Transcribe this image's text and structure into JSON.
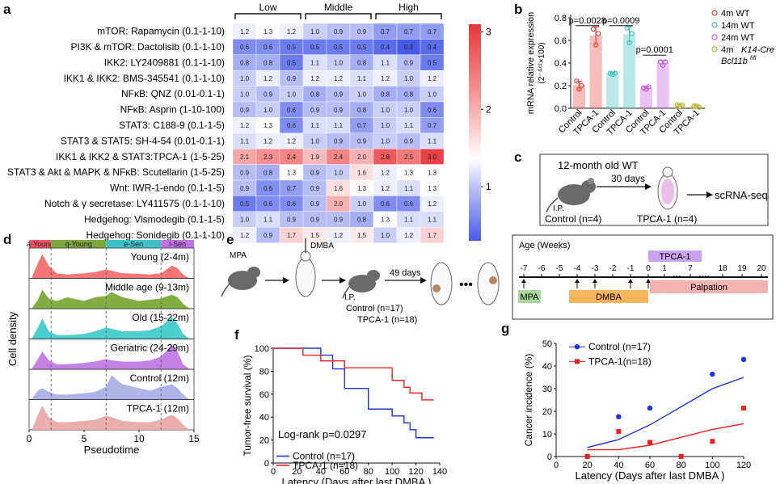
{
  "panels": {
    "a": {
      "label": "a",
      "groups": [
        "Low",
        "Middle",
        "High"
      ],
      "rows": [
        {
          "name": "mTOR: Rapamycin (0.1-1-10)",
          "values": [
            1.2,
            1.3,
            1.2,
            1.0,
            0.9,
            0.9,
            0.7,
            0.7,
            0.7
          ]
        },
        {
          "name": "PI3K & mTOR: Dactolisib (0.1-1-10)",
          "values": [
            0.6,
            0.6,
            0.5,
            0.5,
            0.5,
            0.5,
            0.4,
            0.3,
            0.4
          ]
        },
        {
          "name": "IKK2: LY2409881 (0.1-1-10)",
          "values": [
            0.8,
            0.8,
            0.5,
            1.1,
            1.0,
            0.8,
            1.1,
            0.9,
            0.5
          ]
        },
        {
          "name": "IKK1 & IKK2: BMS-345541 (0.1-1-10)",
          "values": [
            1.0,
            1.2,
            0.9,
            1.2,
            1.2,
            1.1,
            1.2,
            1.0,
            1.2
          ]
        },
        {
          "name": "NFκB: QNZ (0.01-0.1-1)",
          "values": [
            1.0,
            0.9,
            1.0,
            0.8,
            0.9,
            1.0,
            0.8,
            0.8,
            1.0
          ]
        },
        {
          "name": "NFκB: Asprin (1-10-100)",
          "values": [
            0.9,
            1.0,
            0.6,
            0.9,
            0.9,
            0.8,
            1.0,
            1.0,
            0.6
          ]
        },
        {
          "name": "STAT3: C188-9 (0.1-1-5)",
          "values": [
            1.2,
            1.3,
            0.6,
            1.1,
            1.1,
            0.7,
            1.0,
            1.1,
            0.7
          ]
        },
        {
          "name": "STAT3 & STAT5: SH-4-54 (0.01-0.1-1)",
          "values": [
            1.1,
            1.2,
            1.2,
            1.0,
            0.9,
            0.9,
            1.0,
            0.9,
            1.1
          ]
        },
        {
          "name": "IKK1 & IKK2 & STAT3:TPCA-1 (1-5-25)",
          "values": [
            2.1,
            2.3,
            2.4,
            1.9,
            2.4,
            2.0,
            2.8,
            2.5,
            3.0
          ]
        },
        {
          "name": "STAT3 & Akt & MAPK & NFκB: Scutellarin (1-5-25)",
          "values": [
            0.9,
            0.8,
            1.3,
            0.9,
            1.0,
            1.6,
            1.2,
            1.3,
            1.3
          ]
        },
        {
          "name": "Wnt: IWR-1-endo (0.1-1-5)",
          "values": [
            0.9,
            0.6,
            0.7,
            0.9,
            1.6,
            1.3,
            1.2,
            1.1,
            1.3
          ]
        },
        {
          "name": "Notch & γ secretase: LY411575 (0.1-1-10)",
          "values": [
            0.5,
            0.6,
            0.6,
            0.9,
            2.0,
            1.0,
            0.6,
            0.6,
            1.2
          ]
        },
        {
          "name": "Hedgehog: Vismodegib (0.1-1-5)",
          "values": [
            1.0,
            1.1,
            0.9,
            0.9,
            0.9,
            0.8,
            1.3,
            1.1,
            1.1
          ]
        },
        {
          "name": "Hedgehog: Sonidegib (0.1-1-10)",
          "values": [
            1.2,
            0.9,
            1.7,
            1.5,
            1.2,
            1.5,
            1.0,
            1.2,
            1.7
          ]
        }
      ],
      "colorbar_ticks": [
        "3",
        "2",
        "1"
      ]
    },
    "b": {
      "label": "b",
      "ylabel": "mRNA relative expression",
      "ylabel2": "(2⁻ᐞᶜᵗ×100)",
      "yticks": [
        "0.0",
        "0.2",
        "0.4",
        "0.6",
        "0.8"
      ],
      "xlabels": [
        "Control",
        "TPCA-1",
        "Control",
        "TPCA-1",
        "Control",
        "TPCA-1",
        "Control",
        "TPCA-1"
      ],
      "pvalues": [
        "p=0.0028",
        "p=0.0009",
        "p=0.0001"
      ],
      "legend": [
        "4m WT",
        "14m WT",
        "24m WT",
        "4m"
      ],
      "legend_italic": "K14-Cre",
      "legend_line2": "Bcl11b",
      "legend_sup": "f/fl"
    },
    "c": {
      "label": "c",
      "title": "12-month old WT",
      "arrow_label": "30 days",
      "ip": "I.P.",
      "target": "scRNA-seq",
      "control": "Control (n=4)",
      "tpca": "TPCA-1 (n=4)"
    },
    "d": {
      "label": "d",
      "ylabel": "Cell density",
      "xlabel": "Pseudotime",
      "xticks": [
        "0",
        "5",
        "10",
        "15"
      ],
      "states": [
        "a-Young",
        "q-Young",
        "e-Sen",
        "l-Sen"
      ],
      "tracks": [
        "Young (2-4m)",
        "Middle age (9-13m)",
        "Old (15-22m)",
        "Geriatric (24-29m)",
        "Control (12m)",
        "TPCA-1 (12m)"
      ]
    },
    "e": {
      "label": "e",
      "mpa": "MPA",
      "dmba": "DMBA",
      "ip": "I.P.",
      "days": "49 days",
      "control": "Control (n=17)",
      "tpca": "TPCA-1 (n=18)",
      "timeline_title": "Age (Weeks)",
      "weeks": [
        "-7",
        "-6",
        "-5",
        "-4",
        "-3",
        "-2",
        "-1",
        "0",
        "1",
        "7",
        "18",
        "19",
        "20"
      ],
      "bar_tpca": "TPCA-1",
      "bar_mpa": "MPA",
      "bar_dmba": "DMBA",
      "bar_palpation": "Palpation"
    },
    "f": {
      "label": "f",
      "ylabel": "Tumor-free survival (%)",
      "xlabel": "Latency (Days after last DMBA )",
      "xticks": [
        "0",
        "20",
        "40",
        "60",
        "80",
        "100",
        "120",
        "140"
      ],
      "yticks": [
        "0",
        "20",
        "40",
        "60",
        "80",
        "100"
      ],
      "logrank": "Log-rank p=0.0297",
      "legend_control": "Control (n=17)",
      "legend_tpca": "TPCA-1 (n=18)"
    },
    "g": {
      "label": "g",
      "ylabel": "Cancer incidence (%)",
      "xlabel": "Latency (Days after last DMBA )",
      "xticks": [
        "0",
        "20",
        "40",
        "60",
        "80",
        "100",
        "120"
      ],
      "yticks": [
        "0",
        "10",
        "20",
        "30",
        "40",
        "50"
      ],
      "legend_control": "Control (n=17)",
      "legend_tpca": "TPCA-1(n=18)"
    }
  },
  "chart_data": [
    {
      "type": "heatmap",
      "title": "",
      "columns": [
        "Low-1",
        "Low-2",
        "Low-3",
        "Middle-1",
        "Middle-2",
        "Middle-3",
        "High-1",
        "High-2",
        "High-3"
      ],
      "color_range": [
        0.3,
        3.1
      ]
    },
    {
      "type": "bar",
      "categories": [
        "4m WT Control",
        "4m WT TPCA-1",
        "14m WT Control",
        "14m WT TPCA-1",
        "24m WT Control",
        "24m WT TPCA-1",
        "4m K14-Cre Control",
        "4m K14-Cre TPCA-1"
      ],
      "values": [
        0.2,
        0.64,
        0.31,
        0.65,
        0.18,
        0.4,
        0.03,
        0.02
      ],
      "errors": [
        0.04,
        0.08,
        0.01,
        0.07,
        0.01,
        0.02,
        0.005,
        0.005
      ],
      "points": [
        [
          0.24,
          0.17,
          0.2
        ],
        [
          0.7,
          0.56,
          0.66
        ],
        [
          0.31,
          0.3,
          0.31
        ],
        [
          0.71,
          0.58,
          0.66
        ],
        [
          0.18,
          0.17,
          0.19
        ],
        [
          0.41,
          0.38,
          0.41
        ],
        [
          0.03,
          0.02,
          0.03
        ],
        [
          0.02,
          0.02,
          0.01
        ]
      ],
      "colors": [
        "#e8463c",
        "#e8463c",
        "#3cbfc0",
        "#3cbfc0",
        "#c55ad6",
        "#c55ad6",
        "#b6b83a",
        "#b6b83a"
      ],
      "ylim": [
        0,
        0.8
      ]
    },
    {
      "type": "area",
      "xlim": [
        0,
        15
      ],
      "boundaries": [
        2,
        7,
        12
      ],
      "colors": [
        "#f06060",
        "#6ea020",
        "#2fc4c4",
        "#b96ce0",
        "#a2a6e0",
        "#e6a0a0"
      ],
      "series": [
        {
          "name": "Young (2-4m)",
          "x": [
            0.3,
            0.8,
            1.2,
            1.8,
            2.5,
            3.5,
            5,
            6,
            7,
            7.5,
            8.5,
            10,
            11,
            12,
            13,
            13.5,
            14,
            14.6
          ],
          "y": [
            0.1,
            0.6,
            0.95,
            0.5,
            0.2,
            0.15,
            0.2,
            0.25,
            0.35,
            0.3,
            0.2,
            0.18,
            0.15,
            0.2,
            0.5,
            0.4,
            0.15,
            0.0
          ]
        },
        {
          "name": "Middle age (9-13m)",
          "x": [
            0.3,
            0.8,
            1.2,
            1.8,
            2.5,
            3.5,
            5,
            6,
            7,
            7.5,
            8.5,
            10,
            11,
            12,
            13,
            13.5,
            14,
            14.6
          ],
          "y": [
            0.05,
            0.35,
            0.75,
            0.4,
            0.3,
            0.45,
            0.3,
            0.45,
            0.5,
            0.65,
            0.45,
            0.3,
            0.35,
            0.4,
            0.55,
            0.45,
            0.2,
            0.0
          ]
        },
        {
          "name": "Old (15-22m)",
          "x": [
            0.3,
            0.8,
            1.2,
            1.8,
            2.5,
            3.5,
            5,
            6,
            7,
            7.5,
            8.5,
            10,
            11,
            12,
            13,
            13.5,
            14,
            14.6
          ],
          "y": [
            0.05,
            0.45,
            0.8,
            0.3,
            0.15,
            0.15,
            0.2,
            0.3,
            0.45,
            0.4,
            0.3,
            0.3,
            0.35,
            0.5,
            0.85,
            0.6,
            0.2,
            0.0
          ]
        },
        {
          "name": "Geriatric (24-29m)",
          "x": [
            0.3,
            0.8,
            1.2,
            1.8,
            2.5,
            3.5,
            5,
            6,
            7,
            7.5,
            8.5,
            10,
            11,
            12,
            13,
            13.5,
            14,
            14.6
          ],
          "y": [
            0.05,
            0.4,
            0.7,
            0.35,
            0.2,
            0.2,
            0.25,
            0.3,
            0.4,
            0.35,
            0.3,
            0.3,
            0.35,
            0.5,
            0.95,
            0.7,
            0.2,
            0.0
          ]
        },
        {
          "name": "Control (12m)",
          "x": [
            0.3,
            0.8,
            1.2,
            1.8,
            2.5,
            3.5,
            5,
            6,
            7,
            7.5,
            8.5,
            10,
            11,
            12,
            13,
            13.5,
            14,
            14.6
          ],
          "y": [
            0.05,
            0.35,
            0.45,
            0.3,
            0.2,
            0.2,
            0.25,
            0.3,
            0.5,
            0.95,
            0.6,
            0.45,
            0.35,
            0.5,
            0.6,
            0.45,
            0.2,
            0.0
          ]
        },
        {
          "name": "TPCA-1 (12m)",
          "x": [
            0.3,
            0.8,
            1.2,
            1.8,
            2.5,
            3.5,
            5,
            6,
            7,
            7.5,
            8.5,
            10,
            11,
            12,
            13,
            13.5,
            14,
            14.6
          ],
          "y": [
            0.05,
            0.6,
            0.95,
            0.5,
            0.3,
            0.3,
            0.35,
            0.4,
            0.55,
            0.5,
            0.35,
            0.3,
            0.3,
            0.4,
            0.6,
            0.45,
            0.2,
            0.0
          ]
        }
      ]
    },
    {
      "type": "line",
      "xlim": [
        0,
        140
      ],
      "ylim": [
        0,
        100
      ],
      "series": [
        {
          "name": "Control (n=17)",
          "color": "#2233dd",
          "x": [
            0,
            30,
            40,
            40,
            50,
            50,
            60,
            60,
            80,
            80,
            100,
            100,
            110,
            110,
            115,
            115,
            120,
            120,
            135
          ],
          "y": [
            100,
            100,
            100,
            94,
            94,
            82,
            82,
            65,
            65,
            47,
            47,
            41,
            41,
            35,
            35,
            29,
            29,
            22,
            22
          ]
        },
        {
          "name": "TPCA-1 (n=18)",
          "color": "#ee2222",
          "x": [
            0,
            25,
            25,
            40,
            40,
            60,
            60,
            100,
            100,
            110,
            110,
            115,
            115,
            125,
            125,
            135
          ],
          "y": [
            100,
            100,
            94,
            94,
            89,
            89,
            83,
            83,
            72,
            72,
            66,
            66,
            61,
            61,
            55,
            55
          ]
        }
      ]
    },
    {
      "type": "scatter",
      "xlim": [
        0,
        120
      ],
      "ylim": [
        0,
        50
      ],
      "series": [
        {
          "name": "Control (n=17)",
          "color": "#2233dd",
          "x": [
            20,
            40,
            60,
            80,
            100,
            120
          ],
          "y": [
            0,
            17.6,
            21.4,
            0,
            36.4,
            42.9
          ],
          "fit_x": [
            20,
            40,
            60,
            80,
            100,
            120
          ],
          "fit_y": [
            4,
            7.5,
            14,
            22,
            30,
            35
          ]
        },
        {
          "name": "TPCA-1(n=18)",
          "color": "#ee2222",
          "x": [
            20,
            40,
            60,
            80,
            100,
            120
          ],
          "y": [
            0,
            11.1,
            6.3,
            0,
            6.7,
            21.4
          ],
          "fit_x": [
            20,
            40,
            60,
            80,
            100,
            120
          ],
          "fit_y": [
            3,
            3,
            5,
            8.5,
            12,
            14.5
          ]
        }
      ]
    }
  ]
}
